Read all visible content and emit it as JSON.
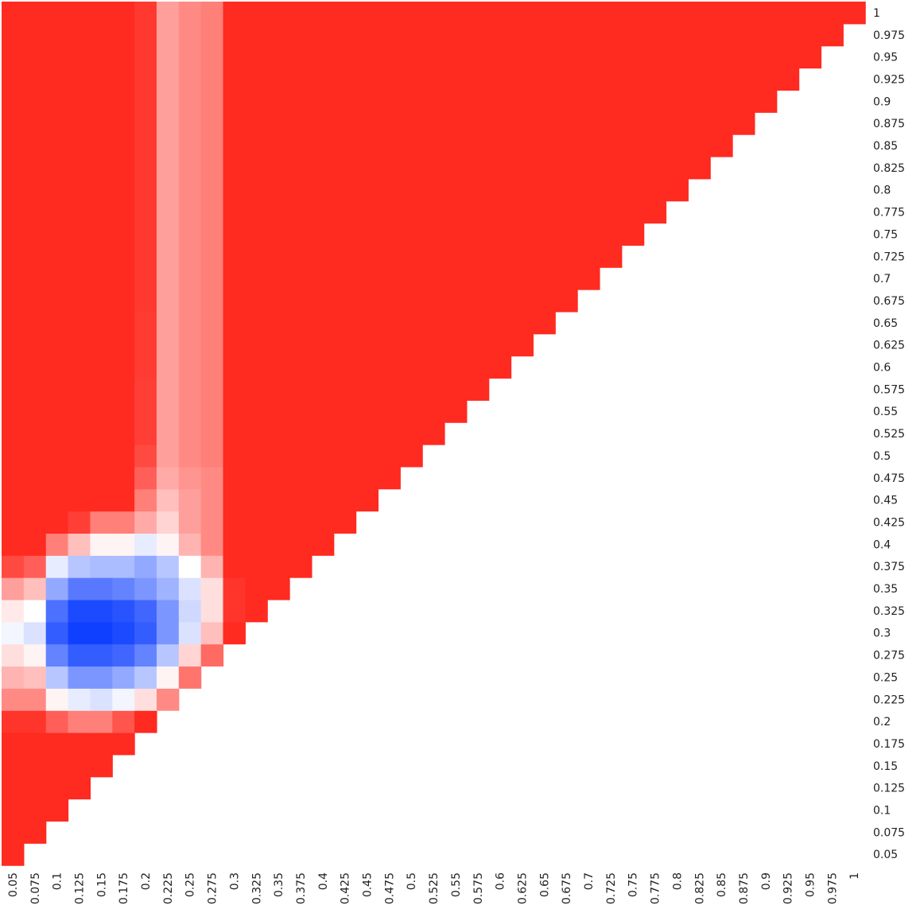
{
  "chart_data": {
    "type": "heatmap",
    "title": "",
    "xlabel": "",
    "ylabel": "",
    "x_categories": [
      "0.05",
      "0.075",
      "0.1",
      "0.125",
      "0.15",
      "0.175",
      "0.2",
      "0.225",
      "0.25",
      "0.275",
      "0.3",
      "0.325",
      "0.35",
      "0.375",
      "0.4",
      "0.425",
      "0.45",
      "0.475",
      "0.5",
      "0.525",
      "0.55",
      "0.575",
      "0.6",
      "0.625",
      "0.65",
      "0.675",
      "0.7",
      "0.725",
      "0.75",
      "0.775",
      "0.8",
      "0.825",
      "0.85",
      "0.875",
      "0.9",
      "0.925",
      "0.95",
      "0.975",
      "1"
    ],
    "y_categories": [
      "0.05",
      "0.075",
      "0.1",
      "0.125",
      "0.15",
      "0.175",
      "0.2",
      "0.225",
      "0.25",
      "0.275",
      "0.3",
      "0.325",
      "0.35",
      "0.375",
      "0.4",
      "0.425",
      "0.45",
      "0.475",
      "0.5",
      "0.525",
      "0.55",
      "0.575",
      "0.6",
      "0.625",
      "0.65",
      "0.675",
      "0.7",
      "0.725",
      "0.75",
      "0.775",
      "0.8",
      "0.825",
      "0.85",
      "0.875",
      "0.9",
      "0.925",
      "0.95",
      "0.975",
      "1"
    ],
    "value_range": [
      -1,
      1
    ],
    "colors": {
      "low": "#1040ff",
      "mid": "#ffffff",
      "high": "#ff2a20"
    },
    "grid": false,
    "legend": "none",
    "rows": [
      {
        "y": "0.05",
        "values": [
          1
        ]
      },
      {
        "y": "0.075",
        "values": [
          1,
          1
        ]
      },
      {
        "y": "0.1",
        "values": [
          1,
          1,
          1
        ]
      },
      {
        "y": "0.125",
        "values": [
          1,
          1,
          1,
          1
        ]
      },
      {
        "y": "0.15",
        "values": [
          1,
          1,
          1,
          1,
          1
        ]
      },
      {
        "y": "0.175",
        "values": [
          1,
          1,
          1,
          1,
          1,
          1
        ]
      },
      {
        "y": "0.2",
        "values": [
          0.95,
          0.95,
          0.75,
          0.6,
          0.6,
          0.8,
          1
        ]
      },
      {
        "y": "0.225",
        "values": [
          0.55,
          0.55,
          0.05,
          -0.1,
          -0.15,
          -0.05,
          0.15,
          0.55
        ]
      },
      {
        "y": "0.25",
        "values": [
          0.35,
          0.3,
          -0.3,
          -0.55,
          -0.55,
          -0.45,
          -0.3,
          0.05,
          0.65
        ]
      },
      {
        "y": "0.275",
        "values": [
          0.15,
          0.05,
          -0.65,
          -0.85,
          -0.85,
          -0.8,
          -0.65,
          -0.3,
          0.2,
          0.7
        ]
      },
      {
        "y": "0.3",
        "values": [
          -0.05,
          -0.15,
          -0.85,
          -1,
          -1,
          -0.95,
          -0.85,
          -0.55,
          -0.15,
          0.3,
          1
        ]
      },
      {
        "y": "0.325",
        "values": [
          0.1,
          0,
          -0.75,
          -0.95,
          -0.95,
          -0.9,
          -0.8,
          -0.55,
          -0.2,
          0.15,
          0.95,
          1
        ]
      },
      {
        "y": "0.35",
        "values": [
          0.45,
          0.3,
          -0.45,
          -0.7,
          -0.7,
          -0.65,
          -0.55,
          -0.4,
          -0.15,
          0.15,
          0.95,
          1,
          1
        ]
      },
      {
        "y": "0.375",
        "values": [
          0.85,
          0.75,
          -0.1,
          -0.3,
          -0.35,
          -0.35,
          -0.45,
          -0.3,
          0,
          0.35,
          1,
          1,
          1,
          1
        ]
      },
      {
        "y": "0.4",
        "values": [
          1,
          1,
          0.6,
          0.3,
          0.05,
          0.05,
          -0.1,
          0.05,
          0.35,
          0.55,
          1,
          1,
          1,
          1,
          1
        ]
      },
      {
        "y": "0.425",
        "values": [
          1,
          1,
          1,
          0.9,
          0.6,
          0.6,
          0.4,
          0.2,
          0.45,
          0.55,
          1,
          1,
          1,
          1,
          1,
          1
        ]
      },
      {
        "y": "0.45",
        "values": [
          1,
          1,
          1,
          1,
          1,
          1,
          0.6,
          0.3,
          0.45,
          0.55,
          1,
          1,
          1,
          1,
          1,
          1,
          1
        ]
      },
      {
        "y": "0.475",
        "values": [
          1,
          1,
          1,
          1,
          1,
          1,
          0.75,
          0.4,
          0.5,
          0.55,
          1,
          1,
          1,
          1,
          1,
          1,
          1,
          1
        ]
      },
      {
        "y": "0.5",
        "values": [
          1,
          1,
          1,
          1,
          1,
          1,
          0.85,
          0.45,
          0.55,
          0.6,
          1,
          1,
          1,
          1,
          1,
          1,
          1,
          1,
          1
        ]
      },
      {
        "y": "0.525",
        "values": [
          1,
          1,
          1,
          1,
          1,
          1,
          0.9,
          0.45,
          0.55,
          0.6,
          1,
          1,
          1,
          1,
          1,
          1,
          1,
          1,
          1,
          1
        ]
      },
      {
        "y": "0.55",
        "values": [
          1,
          1,
          1,
          1,
          1,
          1,
          0.9,
          0.45,
          0.55,
          0.6,
          1,
          1,
          1,
          1,
          1,
          1,
          1,
          1,
          1,
          1,
          1
        ]
      },
      {
        "y": "0.575",
        "values": [
          1,
          1,
          1,
          1,
          1,
          1,
          0.9,
          0.45,
          0.55,
          0.6,
          1,
          1,
          1,
          1,
          1,
          1,
          1,
          1,
          1,
          1,
          1,
          1
        ]
      },
      {
        "y": "0.6",
        "values": [
          1,
          1,
          1,
          1,
          1,
          1,
          0.92,
          0.45,
          0.55,
          0.6,
          1,
          1,
          1,
          1,
          1,
          1,
          1,
          1,
          1,
          1,
          1,
          1,
          1
        ]
      },
      {
        "y": "0.625",
        "values": [
          1,
          1,
          1,
          1,
          1,
          1,
          0.92,
          0.45,
          0.55,
          0.6,
          1,
          1,
          1,
          1,
          1,
          1,
          1,
          1,
          1,
          1,
          1,
          1,
          1,
          1
        ]
      },
      {
        "y": "0.65",
        "values": [
          1,
          1,
          1,
          1,
          1,
          1,
          0.92,
          0.45,
          0.55,
          0.6,
          1,
          1,
          1,
          1,
          1,
          1,
          1,
          1,
          1,
          1,
          1,
          1,
          1,
          1,
          1
        ]
      },
      {
        "y": "0.675",
        "values": [
          1,
          1,
          1,
          1,
          1,
          1,
          0.93,
          0.45,
          0.55,
          0.6,
          1,
          1,
          1,
          1,
          1,
          1,
          1,
          1,
          1,
          1,
          1,
          1,
          1,
          1,
          1,
          1
        ]
      },
      {
        "y": "0.7",
        "values": [
          1,
          1,
          1,
          1,
          1,
          1,
          0.93,
          0.45,
          0.55,
          0.6,
          1,
          1,
          1,
          1,
          1,
          1,
          1,
          1,
          1,
          1,
          1,
          1,
          1,
          1,
          1,
          1,
          1
        ]
      },
      {
        "y": "0.725",
        "values": [
          1,
          1,
          1,
          1,
          1,
          1,
          0.93,
          0.45,
          0.55,
          0.6,
          1,
          1,
          1,
          1,
          1,
          1,
          1,
          1,
          1,
          1,
          1,
          1,
          1,
          1,
          1,
          1,
          1,
          1
        ]
      },
      {
        "y": "0.75",
        "values": [
          1,
          1,
          1,
          1,
          1,
          1,
          0.93,
          0.45,
          0.55,
          0.6,
          1,
          1,
          1,
          1,
          1,
          1,
          1,
          1,
          1,
          1,
          1,
          1,
          1,
          1,
          1,
          1,
          1,
          1,
          1
        ]
      },
      {
        "y": "0.775",
        "values": [
          1,
          1,
          1,
          1,
          1,
          1,
          0.93,
          0.45,
          0.55,
          0.6,
          1,
          1,
          1,
          1,
          1,
          1,
          1,
          1,
          1,
          1,
          1,
          1,
          1,
          1,
          1,
          1,
          1,
          1,
          1,
          1
        ]
      },
      {
        "y": "0.8",
        "values": [
          1,
          1,
          1,
          1,
          1,
          1,
          0.93,
          0.45,
          0.55,
          0.6,
          1,
          1,
          1,
          1,
          1,
          1,
          1,
          1,
          1,
          1,
          1,
          1,
          1,
          1,
          1,
          1,
          1,
          1,
          1,
          1,
          1
        ]
      },
      {
        "y": "0.825",
        "values": [
          1,
          1,
          1,
          1,
          1,
          1,
          0.93,
          0.45,
          0.55,
          0.6,
          1,
          1,
          1,
          1,
          1,
          1,
          1,
          1,
          1,
          1,
          1,
          1,
          1,
          1,
          1,
          1,
          1,
          1,
          1,
          1,
          1,
          1
        ]
      },
      {
        "y": "0.85",
        "values": [
          1,
          1,
          1,
          1,
          1,
          1,
          0.93,
          0.45,
          0.55,
          0.6,
          1,
          1,
          1,
          1,
          1,
          1,
          1,
          1,
          1,
          1,
          1,
          1,
          1,
          1,
          1,
          1,
          1,
          1,
          1,
          1,
          1,
          1,
          1
        ]
      },
      {
        "y": "0.875",
        "values": [
          1,
          1,
          1,
          1,
          1,
          1,
          0.93,
          0.45,
          0.55,
          0.6,
          1,
          1,
          1,
          1,
          1,
          1,
          1,
          1,
          1,
          1,
          1,
          1,
          1,
          1,
          1,
          1,
          1,
          1,
          1,
          1,
          1,
          1,
          1,
          1
        ]
      },
      {
        "y": "0.9",
        "values": [
          1,
          1,
          1,
          1,
          1,
          1,
          0.93,
          0.45,
          0.55,
          0.6,
          1,
          1,
          1,
          1,
          1,
          1,
          1,
          1,
          1,
          1,
          1,
          1,
          1,
          1,
          1,
          1,
          1,
          1,
          1,
          1,
          1,
          1,
          1,
          1,
          1
        ]
      },
      {
        "y": "0.925",
        "values": [
          1,
          1,
          1,
          1,
          1,
          1,
          0.93,
          0.45,
          0.55,
          0.6,
          1,
          1,
          1,
          1,
          1,
          1,
          1,
          1,
          1,
          1,
          1,
          1,
          1,
          1,
          1,
          1,
          1,
          1,
          1,
          1,
          1,
          1,
          1,
          1,
          1,
          1
        ]
      },
      {
        "y": "0.95",
        "values": [
          1,
          1,
          1,
          1,
          1,
          1,
          0.93,
          0.45,
          0.55,
          0.6,
          1,
          1,
          1,
          1,
          1,
          1,
          1,
          1,
          1,
          1,
          1,
          1,
          1,
          1,
          1,
          1,
          1,
          1,
          1,
          1,
          1,
          1,
          1,
          1,
          1,
          1,
          1
        ]
      },
      {
        "y": "0.975",
        "values": [
          1,
          1,
          1,
          1,
          1,
          1,
          0.93,
          0.45,
          0.55,
          0.6,
          1,
          1,
          1,
          1,
          1,
          1,
          1,
          1,
          1,
          1,
          1,
          1,
          1,
          1,
          1,
          1,
          1,
          1,
          1,
          1,
          1,
          1,
          1,
          1,
          1,
          1,
          1,
          1
        ]
      },
      {
        "y": "1",
        "values": [
          1,
          1,
          1,
          1,
          1,
          1,
          0.93,
          0.45,
          0.55,
          0.6,
          1,
          1,
          1,
          1,
          1,
          1,
          1,
          1,
          1,
          1,
          1,
          1,
          1,
          1,
          1,
          1,
          1,
          1,
          1,
          1,
          1,
          1,
          1,
          1,
          1,
          1,
          1,
          1,
          1
        ]
      }
    ]
  }
}
